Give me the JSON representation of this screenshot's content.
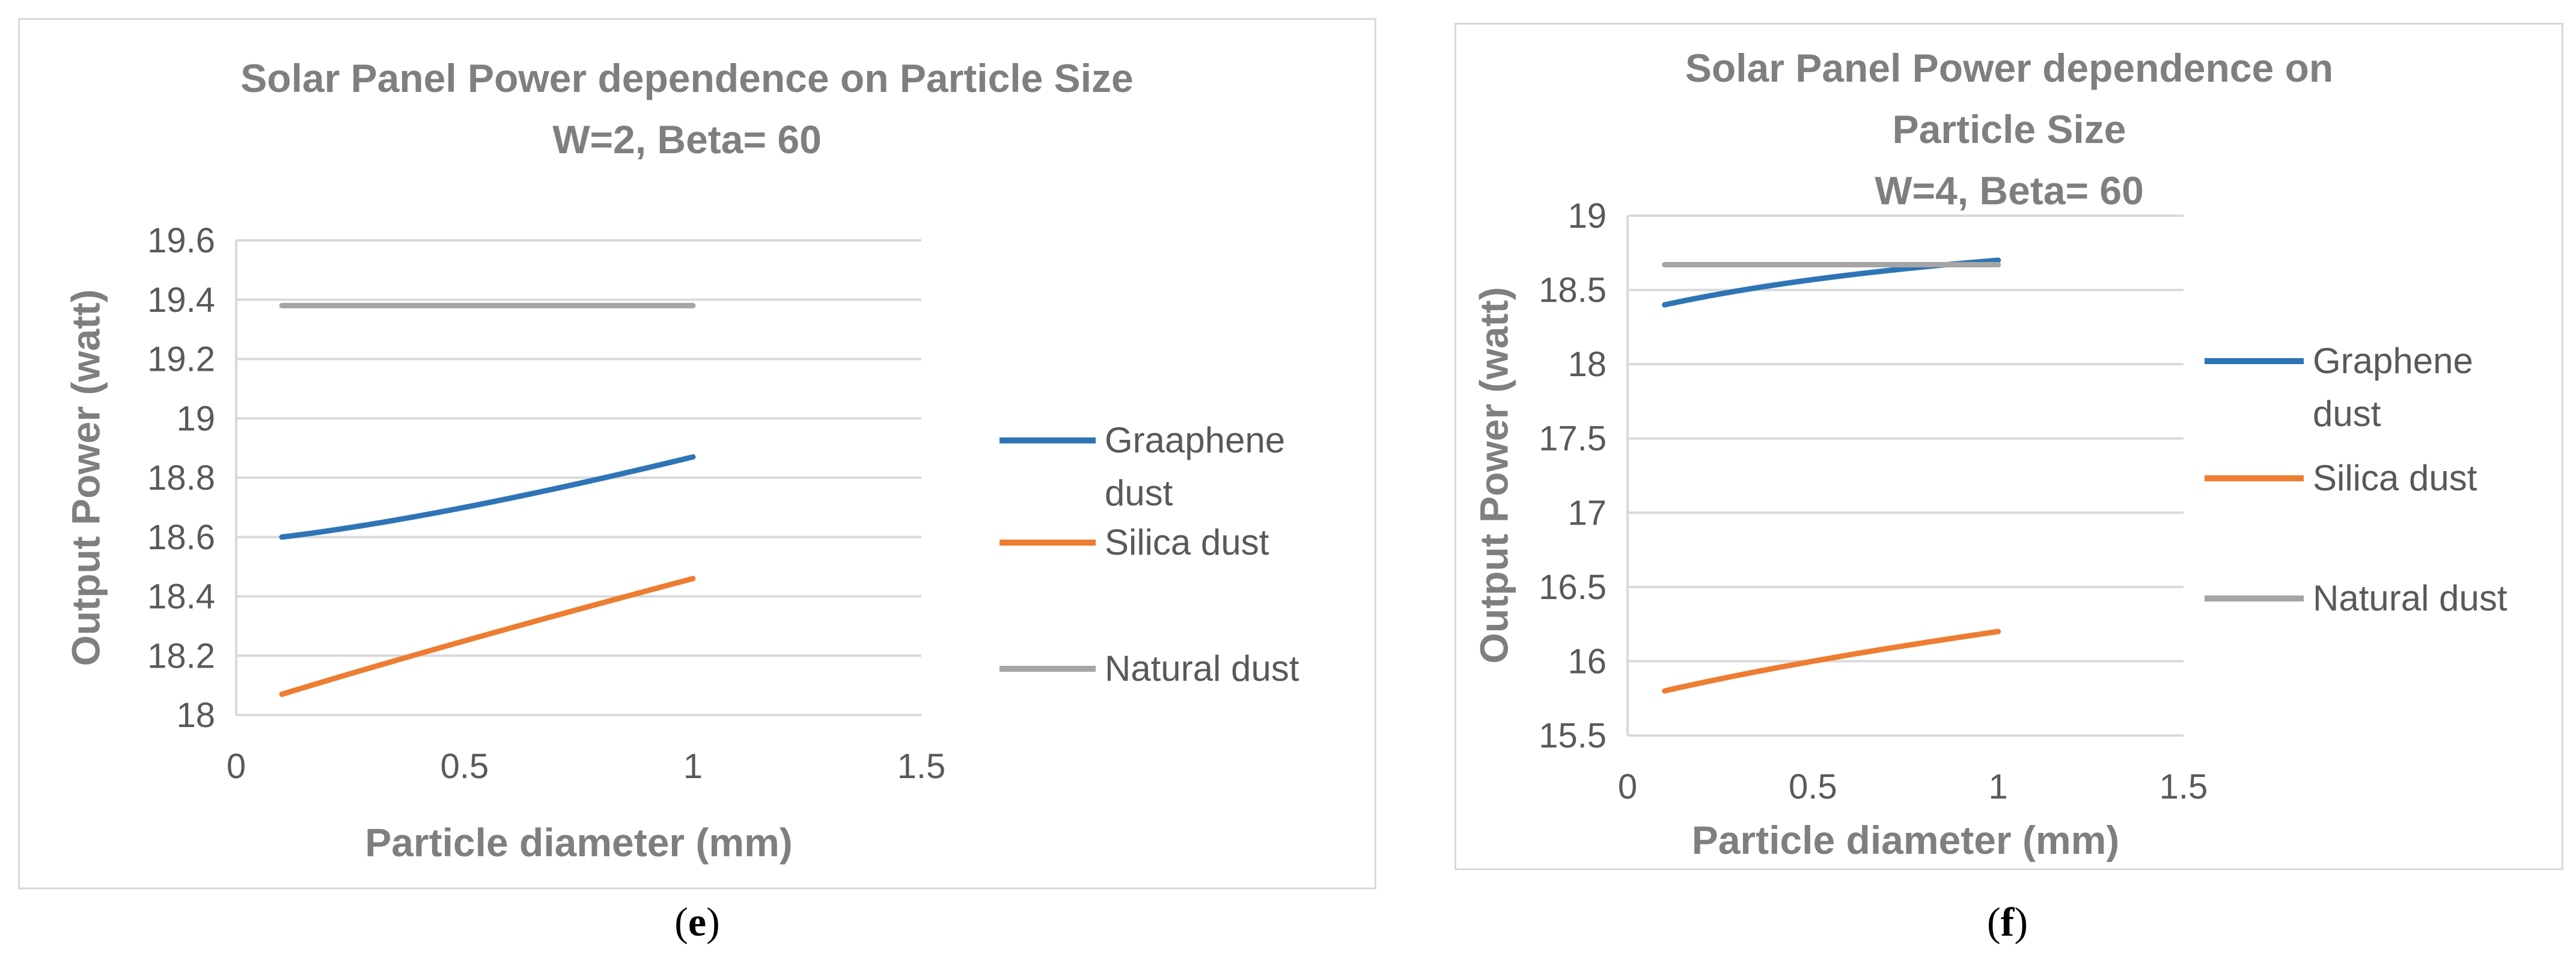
{
  "chart_data": [
    {
      "type": "line",
      "title_lines": [
        "Solar Panel Power dependence on Particle Size",
        "W=2, Beta= 60"
      ],
      "xlabel": "Particle diameter (mm)",
      "ylabel": "Output Power (watt)",
      "xlim": [
        0,
        1.5
      ],
      "ylim": [
        18,
        19.6
      ],
      "xticks": [
        0,
        0.5,
        1,
        1.5
      ],
      "xtick_labels": [
        "0",
        "0.5",
        "1",
        "1.5"
      ],
      "yticks": [
        18,
        18.2,
        18.4,
        18.6,
        18.8,
        19,
        19.2,
        19.4,
        19.6
      ],
      "ytick_labels": [
        "18",
        "18.2",
        "18.4",
        "18.6",
        "18.8",
        "19",
        "19.2",
        "19.4",
        "19.6"
      ],
      "grid": true,
      "legend_position": "right",
      "series": [
        {
          "name": "Graaphene dust",
          "legend_lines": [
            "Graaphene",
            "dust"
          ],
          "color": "#2e75b6",
          "x": [
            0.1,
            0.5,
            1.0
          ],
          "y": [
            18.6,
            18.7,
            18.87
          ]
        },
        {
          "name": "Silica dust",
          "legend_lines": [
            "Silica dust"
          ],
          "color": "#ed7d31",
          "x": [
            0.1,
            0.5,
            1.0
          ],
          "y": [
            18.07,
            18.25,
            18.46
          ]
        },
        {
          "name": "Natural dust",
          "legend_lines": [
            "Natural dust"
          ],
          "color": "#a5a5a5",
          "x": [
            0.1,
            0.5,
            1.0
          ],
          "y": [
            19.38,
            19.38,
            19.38
          ]
        }
      ],
      "sublabel": "e"
    },
    {
      "type": "line",
      "title_lines": [
        "Solar Panel Power dependence on",
        "Particle Size",
        "W=4, Beta= 60"
      ],
      "xlabel": "Particle diameter (mm)",
      "ylabel": "Output Power (watt)",
      "xlim": [
        0,
        1.5
      ],
      "ylim": [
        15.5,
        19
      ],
      "xticks": [
        0,
        0.5,
        1,
        1.5
      ],
      "xtick_labels": [
        "0",
        "0.5",
        "1",
        "1.5"
      ],
      "yticks": [
        15.5,
        16,
        16.5,
        17,
        17.5,
        18,
        18.5,
        19
      ],
      "ytick_labels": [
        "15.5",
        "16",
        "16.5",
        "17",
        "17.5",
        "18",
        "18.5",
        "19"
      ],
      "grid": true,
      "legend_position": "right",
      "series": [
        {
          "name": "Graphene dust",
          "legend_lines": [
            "Graphene",
            "dust"
          ],
          "color": "#2e75b6",
          "x": [
            0.1,
            0.5,
            1.0
          ],
          "y": [
            18.4,
            18.57,
            18.7
          ]
        },
        {
          "name": "Silica dust",
          "legend_lines": [
            "Silica dust"
          ],
          "color": "#ed7d31",
          "x": [
            0.1,
            0.5,
            1.0
          ],
          "y": [
            15.8,
            16.0,
            16.2
          ]
        },
        {
          "name": "Natural dust",
          "legend_lines": [
            "Natural dust"
          ],
          "color": "#a5a5a5",
          "x": [
            0.1,
            0.5,
            1.0
          ],
          "y": [
            18.67,
            18.67,
            18.67
          ]
        }
      ],
      "sublabel": "f"
    }
  ]
}
